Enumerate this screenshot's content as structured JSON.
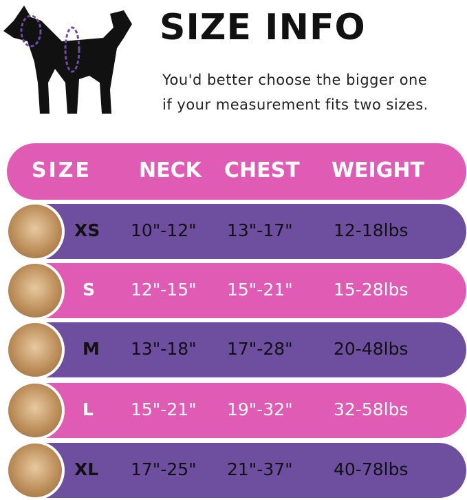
{
  "title": "SIZE INFO",
  "note": [
    "You'd better choose the bigger one",
    "if your measurement fits two sizes."
  ],
  "colors": {
    "pink": "#e05cb4",
    "purple": "#6d4e9f"
  },
  "headers": [
    "SIZE",
    "NECK",
    "CHEST",
    "WEIGHT"
  ],
  "rows": [
    {
      "size": "XS",
      "neck": "10\"-12\"",
      "chest": "13\"-17\"",
      "weight": "12-18lbs"
    },
    {
      "size": "S",
      "neck": "12\"-15\"",
      "chest": "15\"-21\"",
      "weight": "15-28lbs"
    },
    {
      "size": "M",
      "neck": "13\"-18\"",
      "chest": "17\"-28\"",
      "weight": "20-48lbs"
    },
    {
      "size": "L",
      "neck": "15\"-21\"",
      "chest": "19\"-32\"",
      "weight": "32-58lbs"
    },
    {
      "size": "XL",
      "neck": "17\"-25\"",
      "chest": "21\"-37\"",
      "weight": "40-78lbs"
    }
  ]
}
